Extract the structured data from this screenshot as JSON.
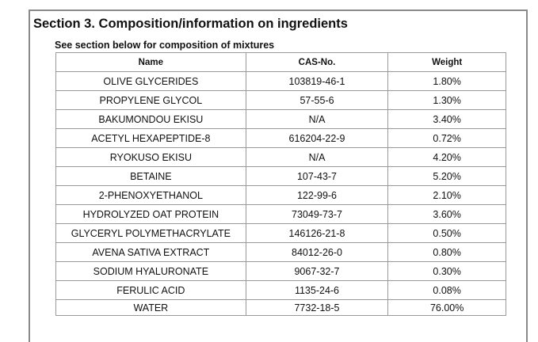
{
  "section_title": "Section 3. Composition/information on ingredients",
  "subtitle": "See section below for composition of mixtures",
  "table": {
    "headers": [
      "Name",
      "CAS-No.",
      "Weight"
    ],
    "rows": [
      [
        "OLIVE GLYCERIDES",
        "103819-46-1",
        "1.80%"
      ],
      [
        "PROPYLENE GLYCOL",
        "57-55-6",
        "1.30%"
      ],
      [
        "BAKUMONDOU EKISU",
        "N/A",
        "3.40%"
      ],
      [
        "ACETYL HEXAPEPTIDE-8",
        "616204-22-9",
        "0.72%"
      ],
      [
        "RYOKUSO EKISU",
        "N/A",
        "4.20%"
      ],
      [
        "BETAINE",
        "107-43-7",
        "5.20%"
      ],
      [
        "2-PHENOXYETHANOL",
        "122-99-6",
        "2.10%"
      ],
      [
        "HYDROLYZED OAT PROTEIN",
        "73049-73-7",
        "3.60%"
      ],
      [
        "GLYCERYL POLYMETHACRYLATE",
        "146126-21-8",
        "0.50%"
      ],
      [
        "AVENA SATIVA EXTRACT",
        "84012-26-0",
        "0.80%"
      ],
      [
        "SODIUM HYALURONATE",
        "9067-32-7",
        "0.30%"
      ],
      [
        "FERULIC ACID",
        "1135-24-6",
        "0.08%"
      ],
      [
        "WATER",
        "7732-18-5",
        "76.00%"
      ]
    ]
  }
}
